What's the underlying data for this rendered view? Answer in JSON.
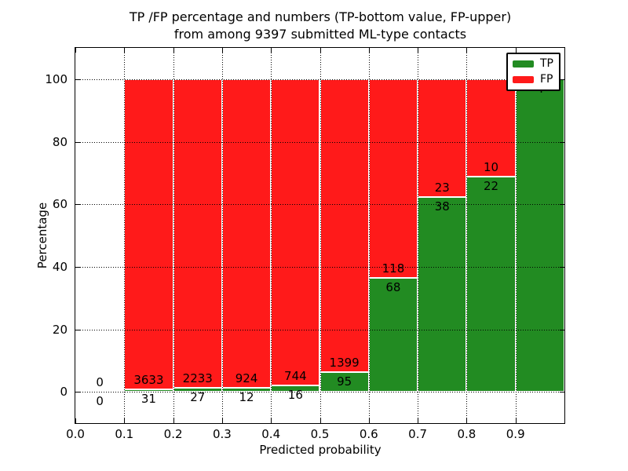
{
  "figure": {
    "background": "#ffffff"
  },
  "chart_data": {
    "type": "bar",
    "stacked": true,
    "orientation": "vertical",
    "title_lines": [
      "TP /FP percentage and numbers (TP-bottom value, FP-upper)",
      "from among 9397 submitted ML-type contacts"
    ],
    "xlabel": "Predicted probability",
    "ylabel": "Percentage",
    "xlim": [
      0.0,
      1.0
    ],
    "ylim": [
      -10,
      110
    ],
    "x_tick_values": [
      0.0,
      0.1,
      0.2,
      0.3,
      0.4,
      0.5,
      0.6,
      0.7,
      0.8,
      0.9
    ],
    "x_tick_labels": [
      "0.0",
      "0.1",
      "0.2",
      "0.3",
      "0.4",
      "0.5",
      "0.6",
      "0.7",
      "0.8",
      "0.9"
    ],
    "y_tick_values": [
      0,
      20,
      40,
      60,
      80,
      100
    ],
    "y_tick_labels": [
      "0",
      "20",
      "40",
      "60",
      "80",
      "100"
    ],
    "grid": "dotted",
    "grid_color": "#000000",
    "bar_edge_color": "#ffffff",
    "bar_unit": "percent of bin total; TP bottom segment, FP upper segment, each bin sums to 100%",
    "series": [
      {
        "name": "TP",
        "color": "#228b22",
        "position": "bottom"
      },
      {
        "name": "FP",
        "color": "#ff1a1a",
        "position": "top"
      }
    ],
    "bins": [
      {
        "x0": 0.0,
        "x1": 0.1,
        "tp": 0,
        "fp": 0
      },
      {
        "x0": 0.1,
        "x1": 0.2,
        "tp": 31,
        "fp": 3633
      },
      {
        "x0": 0.2,
        "x1": 0.3,
        "tp": 27,
        "fp": 2233
      },
      {
        "x0": 0.3,
        "x1": 0.4,
        "tp": 12,
        "fp": 924
      },
      {
        "x0": 0.4,
        "x1": 0.5,
        "tp": 16,
        "fp": 744
      },
      {
        "x0": 0.5,
        "x1": 0.6,
        "tp": 95,
        "fp": 1399
      },
      {
        "x0": 0.6,
        "x1": 0.7,
        "tp": 68,
        "fp": 118
      },
      {
        "x0": 0.7,
        "x1": 0.8,
        "tp": 38,
        "fp": 23
      },
      {
        "x0": 0.8,
        "x1": 0.9,
        "tp": 22,
        "fp": 10
      },
      {
        "x0": 0.9,
        "x1": 1.0,
        "tp": 4,
        "fp": 0
      }
    ],
    "legend": {
      "position": "upper right"
    }
  }
}
